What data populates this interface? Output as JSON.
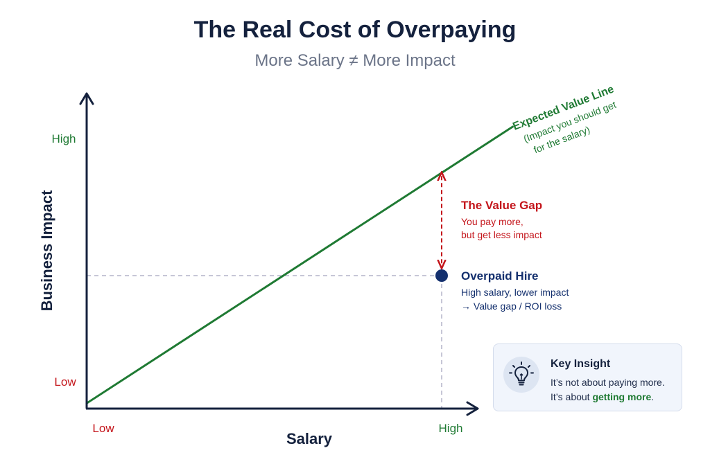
{
  "title": "The Real Cost of Overpaying",
  "subtitle": "More Salary ≠ More Impact",
  "chart_data": {
    "type": "line",
    "xlabel": "Salary",
    "ylabel": "Business Impact",
    "x_ticks": {
      "low": "Low",
      "high": "High"
    },
    "y_ticks": {
      "low": "Low",
      "high": "High"
    },
    "xlim": [
      0,
      1
    ],
    "ylim": [
      0,
      1
    ],
    "series": [
      {
        "name": "Expected Value Line",
        "color": "#1f7a33",
        "x": [
          0,
          1.2
        ],
        "y": [
          0.02,
          1.06
        ]
      }
    ],
    "points": [
      {
        "label": "Overpaid Hire",
        "x": 1.0,
        "y": 0.5,
        "color": "#14306e"
      }
    ],
    "reference_lines": {
      "horizontal_at_y": 0.5,
      "vertical_at_x": 1.0
    },
    "annotations": {
      "expected_line": {
        "title": "Expected Value Line",
        "line1": "(Impact you should get",
        "line2": "for the salary)"
      },
      "value_gap": {
        "title": "The Value Gap",
        "line1": "You pay more,",
        "line2": "but get less impact",
        "color": "#c4161c",
        "from_y": 0.89,
        "to_y": 0.5
      },
      "overpaid_hire": {
        "title": "Overpaid Hire",
        "line1": "High salary, lower impact",
        "line2": "→ Value gap / ROI loss",
        "color": "#14306e"
      }
    }
  },
  "insight": {
    "icon": "lightbulb-icon",
    "title": "Key Insight",
    "line1": "It’s not about paying more.",
    "line2_prefix": "It’s about ",
    "line2_highlight": "getting more",
    "line2_suffix": "."
  },
  "colors": {
    "navy": "#14213d",
    "green": "#1f7a33",
    "red": "#c4161c",
    "dashed": "#b4b4c8",
    "muted": "#6b7488"
  }
}
